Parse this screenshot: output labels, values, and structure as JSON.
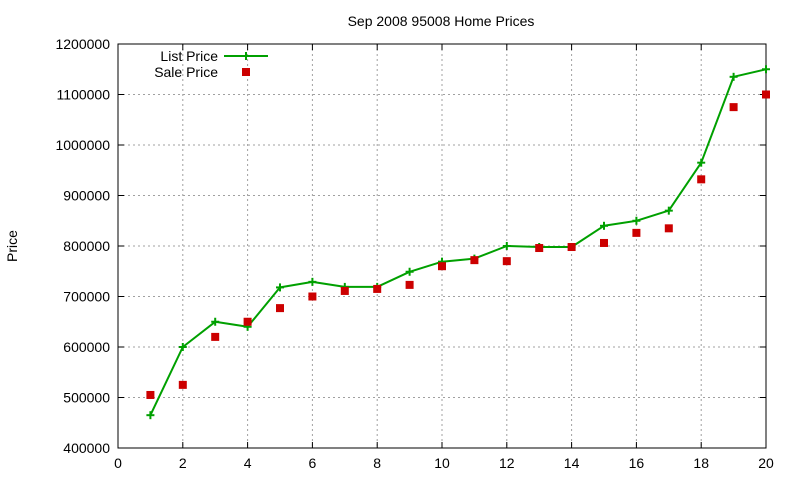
{
  "chart_data": {
    "type": "line",
    "title": "Sep 2008 95008 Home Prices",
    "xlabel": "",
    "ylabel": "Price",
    "xlim": [
      0,
      20
    ],
    "ylim": [
      400000,
      1200000
    ],
    "x_ticks": [
      0,
      2,
      4,
      6,
      8,
      10,
      12,
      14,
      16,
      18,
      20
    ],
    "y_ticks": [
      400000,
      500000,
      600000,
      700000,
      800000,
      900000,
      1000000,
      1100000,
      1200000
    ],
    "grid": true,
    "legend_position": "top-left",
    "x": [
      1,
      2,
      3,
      4,
      5,
      6,
      7,
      8,
      9,
      10,
      11,
      12,
      13,
      14,
      15,
      16,
      17,
      18,
      19,
      20
    ],
    "series": [
      {
        "name": "List Price",
        "style": "line-with-plus-markers",
        "color": "#00a000",
        "values": [
          465000,
          600000,
          650000,
          640000,
          718000,
          729000,
          719000,
          719000,
          749000,
          769000,
          775000,
          800000,
          798000,
          798000,
          840000,
          850000,
          870000,
          965000,
          1135000,
          1150000
        ]
      },
      {
        "name": "Sale Price",
        "style": "square-markers",
        "color": "#cc0000",
        "values": [
          505000,
          525000,
          620000,
          650000,
          677000,
          700000,
          711000,
          715000,
          723000,
          760000,
          772000,
          770000,
          796000,
          798000,
          806000,
          826000,
          835000,
          932000,
          1075000,
          1100000
        ]
      }
    ]
  }
}
